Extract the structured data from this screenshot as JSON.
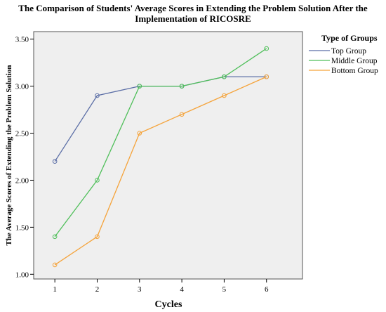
{
  "chart_data": {
    "type": "line",
    "title_line1": "The Comparison of Students' Average Scores in Extending the Problem Solution After the",
    "title_line2": "Implementation of RICOSRE",
    "xlabel": "Cycles",
    "ylabel": "The Average Scores of Extending the Problem Solution",
    "x": [
      1,
      2,
      3,
      4,
      5,
      6
    ],
    "x_tick_labels": [
      "1",
      "2",
      "3",
      "4",
      "5",
      "6"
    ],
    "y_ticks": [
      1.0,
      1.5,
      2.0,
      2.5,
      3.0,
      3.5
    ],
    "y_tick_labels": [
      "1.00",
      "1.50",
      "2.00",
      "2.50",
      "3.00",
      "3.50"
    ],
    "ylim": [
      0.95,
      3.58
    ],
    "xlim": [
      0.5,
      6.85
    ],
    "grid": false,
    "legend_title": "Type of Groups",
    "legend_position": "right",
    "series": [
      {
        "name": "Top Group",
        "color": "#5b6ea6",
        "values": [
          2.2,
          2.9,
          3.0,
          3.0,
          3.1,
          3.1
        ]
      },
      {
        "name": "Middle Group",
        "color": "#4fbf5a",
        "values": [
          1.4,
          2.0,
          3.0,
          3.0,
          3.1,
          3.4
        ]
      },
      {
        "name": "Bottom Group",
        "color": "#f5a33a",
        "values": [
          1.1,
          1.4,
          2.5,
          2.7,
          2.9,
          3.1
        ]
      }
    ]
  }
}
